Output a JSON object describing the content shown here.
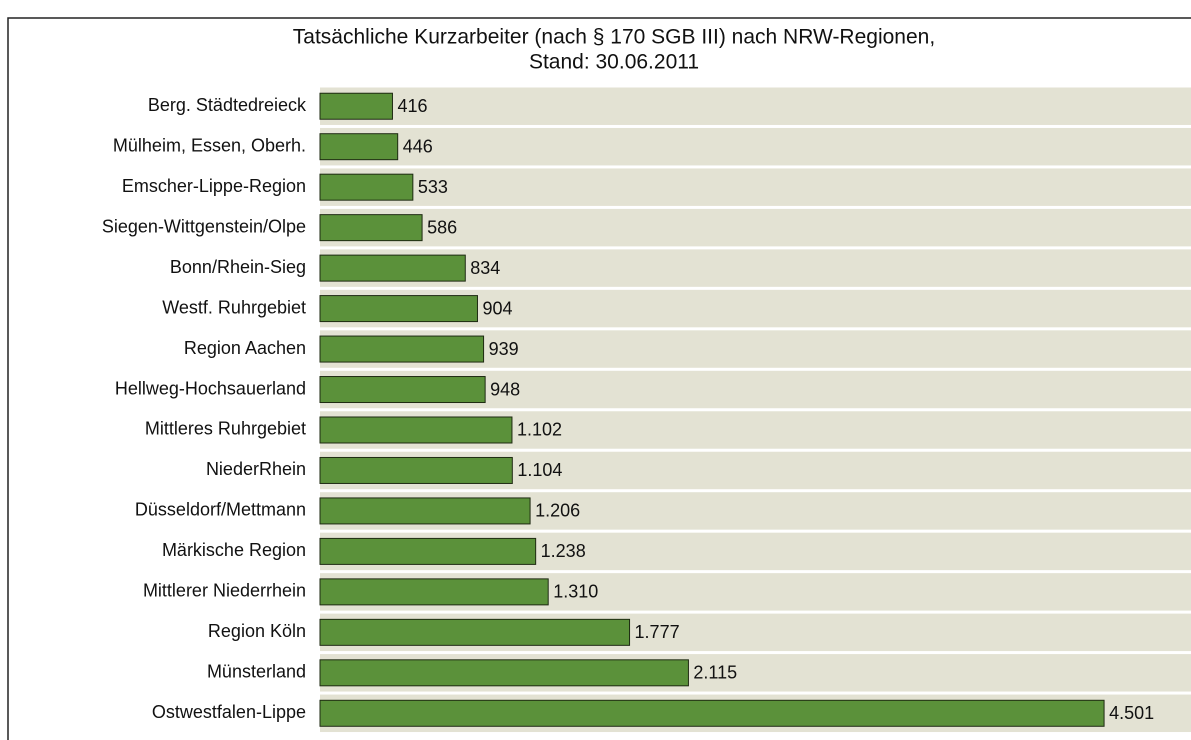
{
  "chart_data": {
    "type": "barh",
    "title": [
      "Tatsächliche Kurzarbeiter (nach § 170 SGB III) nach NRW-Regionen,",
      "Stand: 30.06.2011"
    ],
    "categories": [
      "Berg. Städtedreieck",
      "Mülheim, Essen, Oberh.",
      "Emscher-Lippe-Region",
      "Siegen-Wittgenstein/Olpe",
      "Bonn/Rhein-Sieg",
      "Westf. Ruhrgebiet",
      "Region Aachen",
      "Hellweg-Hochsauerland",
      "Mittleres Ruhrgebiet",
      "NiederRhein",
      "Düsseldorf/Mettmann",
      "Märkische Region",
      "Mittlerer Niederrhein",
      "Region Köln",
      "Münsterland",
      "Ostwestfalen-Lippe"
    ],
    "values": [
      416,
      446,
      533,
      586,
      834,
      904,
      939,
      948,
      1102,
      1104,
      1206,
      1238,
      1310,
      1777,
      2115,
      4501
    ],
    "value_labels": [
      "416",
      "446",
      "533",
      "586",
      "834",
      "904",
      "939",
      "948",
      "1.102",
      "1.104",
      "1.206",
      "1.238",
      "1.310",
      "1.777",
      "2.115",
      "4.501"
    ],
    "color": "#5b913a",
    "xlim": [
      0,
      5000
    ]
  }
}
